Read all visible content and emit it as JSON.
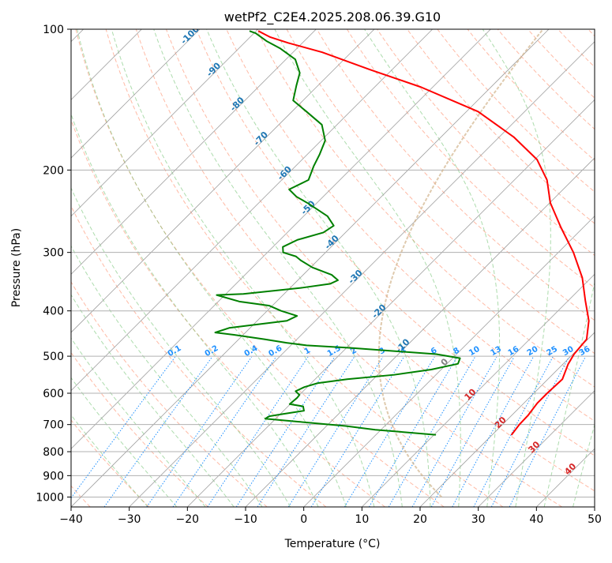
{
  "chart_data": {
    "type": "skew-t log-p",
    "title": "wetPf2_C2E4.2025.208.06.39.G10",
    "xlabel": "Temperature (°C)",
    "ylabel": "Pressure (hPa)",
    "xlim": [
      -40,
      50
    ],
    "ylim": [
      1050,
      100
    ],
    "y_scale": "log",
    "grid": true,
    "x_ticks": [
      -40,
      -30,
      -20,
      -10,
      0,
      10,
      20,
      30,
      40,
      50
    ],
    "y_ticks": [
      100,
      200,
      300,
      400,
      500,
      600,
      700,
      800,
      900,
      1000
    ],
    "series": [
      {
        "kind": "temperature",
        "color": "#ff0000",
        "points": [
          {
            "t": 23.3,
            "p": 735
          },
          {
            "t": 22.9,
            "p": 700
          },
          {
            "t": 22.8,
            "p": 668
          },
          {
            "t": 22.3,
            "p": 630
          },
          {
            "t": 22.3,
            "p": 600
          },
          {
            "t": 22.5,
            "p": 560
          },
          {
            "t": 20.9,
            "p": 520
          },
          {
            "t": 20.2,
            "p": 495
          },
          {
            "t": 19.8,
            "p": 460
          },
          {
            "t": 17.0,
            "p": 420
          },
          {
            "t": 12.9,
            "p": 380
          },
          {
            "t": 8.5,
            "p": 340
          },
          {
            "t": 2.6,
            "p": 300
          },
          {
            "t": -3.9,
            "p": 265
          },
          {
            "t": -9.9,
            "p": 235
          },
          {
            "t": -14.4,
            "p": 210
          },
          {
            "t": -19.6,
            "p": 190
          },
          {
            "t": -27.5,
            "p": 170
          },
          {
            "t": -38.0,
            "p": 150
          },
          {
            "t": -52.0,
            "p": 133
          },
          {
            "t": -63.8,
            "p": 122
          },
          {
            "t": -75.0,
            "p": 112
          },
          {
            "t": -82.4,
            "p": 107
          },
          {
            "t": -86.5,
            "p": 104
          },
          {
            "t": -88.0,
            "p": 102.5
          },
          {
            "t": -89.5,
            "p": 101
          }
        ]
      },
      {
        "kind": "dewpoint",
        "color": "#008000",
        "points": [
          {
            "t": 10.2,
            "p": 736
          },
          {
            "t": -1.0,
            "p": 718
          },
          {
            "t": -6.7,
            "p": 705
          },
          {
            "t": -15.7,
            "p": 690
          },
          {
            "t": -21.8,
            "p": 680
          },
          {
            "t": -21.5,
            "p": 672
          },
          {
            "t": -19.7,
            "p": 665
          },
          {
            "t": -16.5,
            "p": 654
          },
          {
            "t": -17.4,
            "p": 640
          },
          {
            "t": -20.1,
            "p": 633
          },
          {
            "t": -19.9,
            "p": 614
          },
          {
            "t": -20.0,
            "p": 605
          },
          {
            "t": -21.3,
            "p": 594
          },
          {
            "t": -20.5,
            "p": 582
          },
          {
            "t": -18.9,
            "p": 571
          },
          {
            "t": -14.5,
            "p": 560
          },
          {
            "t": -7.2,
            "p": 548
          },
          {
            "t": -1.7,
            "p": 534
          },
          {
            "t": 1.9,
            "p": 519
          },
          {
            "t": 1.3,
            "p": 505
          },
          {
            "t": -3.5,
            "p": 495
          },
          {
            "t": -19.2,
            "p": 480
          },
          {
            "t": -27.3,
            "p": 474
          },
          {
            "t": -31.2,
            "p": 468
          },
          {
            "t": -35.6,
            "p": 460
          },
          {
            "t": -41.6,
            "p": 450
          },
          {
            "t": -45.2,
            "p": 445
          },
          {
            "t": -43.6,
            "p": 435
          },
          {
            "t": -34.9,
            "p": 420
          },
          {
            "t": -34.0,
            "p": 410
          },
          {
            "t": -37.6,
            "p": 400
          },
          {
            "t": -40.5,
            "p": 390
          },
          {
            "t": -46.4,
            "p": 382
          },
          {
            "t": -51.4,
            "p": 370
          },
          {
            "t": -47.0,
            "p": 368
          },
          {
            "t": -38.0,
            "p": 357
          },
          {
            "t": -33.8,
            "p": 350
          },
          {
            "t": -33.1,
            "p": 344
          },
          {
            "t": -35.1,
            "p": 335
          },
          {
            "t": -39.7,
            "p": 323
          },
          {
            "t": -42.9,
            "p": 312
          },
          {
            "t": -44.4,
            "p": 306
          },
          {
            "t": -47.3,
            "p": 300
          },
          {
            "t": -48.3,
            "p": 292
          },
          {
            "t": -47.0,
            "p": 282
          },
          {
            "t": -43.8,
            "p": 272
          },
          {
            "t": -43.2,
            "p": 263
          },
          {
            "t": -45.9,
            "p": 251
          },
          {
            "t": -51.3,
            "p": 236
          },
          {
            "t": -54.6,
            "p": 228
          },
          {
            "t": -57.1,
            "p": 220
          },
          {
            "t": -55.4,
            "p": 210
          },
          {
            "t": -56.9,
            "p": 196
          },
          {
            "t": -57.9,
            "p": 185
          },
          {
            "t": -59.3,
            "p": 173
          },
          {
            "t": -62.6,
            "p": 160
          },
          {
            "t": -67.5,
            "p": 150
          },
          {
            "t": -71.7,
            "p": 142
          },
          {
            "t": -73.7,
            "p": 132
          },
          {
            "t": -75.3,
            "p": 124
          },
          {
            "t": -78.4,
            "p": 116
          },
          {
            "t": -82.8,
            "p": 110
          },
          {
            "t": -86.5,
            "p": 106
          },
          {
            "t": -89.7,
            "p": 102
          },
          {
            "t": -91.0,
            "p": 101
          }
        ]
      }
    ],
    "isotherm_labels": [
      -100,
      -90,
      -80,
      -70,
      -60,
      -50,
      -40,
      -30,
      -20,
      -10,
      0,
      10,
      20,
      30,
      40
    ],
    "mixing_ratio_labels": [
      "0.1",
      "0.2",
      "0.4",
      "0.6",
      "1",
      "1.5",
      "2",
      "3",
      "4",
      "6",
      "8",
      "10",
      "13",
      "16",
      "20",
      "25",
      "30",
      "36"
    ],
    "colors": {
      "temperature": "#ff0000",
      "dewpoint": "#008000",
      "isotherm_cold": "#1f77b4",
      "isotherm_warm": "#d62728",
      "isotherm_zero": "#808080",
      "mixing_ratio": "#1e90ff",
      "dry_adiabat": "#ff8c69",
      "moist_adiabat": "#6abf69",
      "skewed_isotherm": "#a0a0a0",
      "isobar": "#b0b0b0",
      "label_isotherm_line": "#d2b48c"
    }
  }
}
